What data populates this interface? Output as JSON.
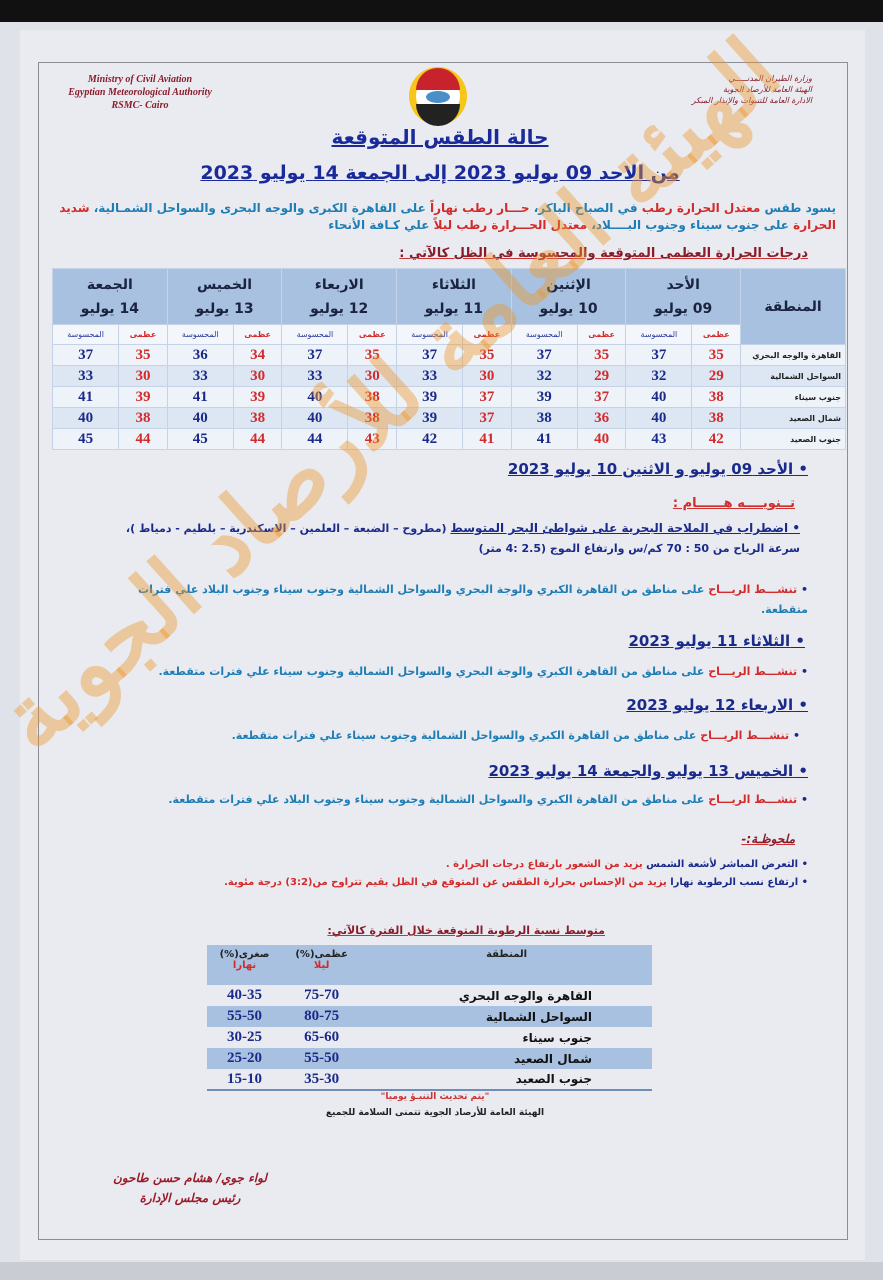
{
  "header": {
    "en_lines": [
      "Ministry of Civil Aviation",
      "Egyptian Meteorological Authority",
      "RSMC- Cairo"
    ],
    "ar_lines": [
      "وزارة الطيران المدنـــــي",
      "الهيئة العامة للأرصاد الجوية",
      "الادارة العامة للتنبوات والإنذار المبكر"
    ],
    "logo": "ema-logo",
    "title": "حالة الطقس المتوقعة",
    "subtitle": "من الاحد 09 يوليو 2023 إلى الجمعة 14 يوليو 2023"
  },
  "intro": {
    "p1": "يسود طقس ",
    "p2": "معتدل الحرارة رطب",
    "p3": " في الصباح الباكر، ",
    "p4": "حـــار رطب نهاراً",
    "p5": " على القاهرة الكبرى والوجه البحرى والسواحل الشمـالية، ",
    "p6": "شديد الحرارة",
    "p7": " على جنوب سيناء وجنوب البــــلاد، ",
    "p8": "معتدل الحـــرارة رطب ليلاً",
    "p9": " علي كـافة الأنحاء"
  },
  "temp_caption": "درجات الحرارة العظمى المتوقعة والمحسوسة في الظل كالآتي :",
  "temp_table": {
    "region_header": "المنطقة",
    "max_label": "عظمى",
    "feel_label": "المحسوسة",
    "days": [
      {
        "day": "الأحد",
        "date": "09 يوليو"
      },
      {
        "day": "الإثنين",
        "date": "10 يوليو"
      },
      {
        "day": "الثلاثاء",
        "date": "11 يوليو"
      },
      {
        "day": "الاربعاء",
        "date": "12 يوليو"
      },
      {
        "day": "الخميس",
        "date": "13 يوليو"
      },
      {
        "day": "الجمعة",
        "date": "14 يوليو"
      }
    ],
    "rows": [
      {
        "region": "القاهرة والوجه البحري",
        "values": [
          [
            35,
            37
          ],
          [
            35,
            37
          ],
          [
            35,
            37
          ],
          [
            35,
            37
          ],
          [
            34,
            36
          ],
          [
            35,
            37
          ]
        ]
      },
      {
        "region": "السواحل الشمالية",
        "values": [
          [
            29,
            32
          ],
          [
            29,
            32
          ],
          [
            30,
            33
          ],
          [
            30,
            33
          ],
          [
            30,
            33
          ],
          [
            30,
            33
          ]
        ]
      },
      {
        "region": "جنوب سيناء",
        "values": [
          [
            38,
            40
          ],
          [
            37,
            39
          ],
          [
            37,
            39
          ],
          [
            38,
            40
          ],
          [
            39,
            41
          ],
          [
            39,
            41
          ]
        ]
      },
      {
        "region": "شمال الصعيد",
        "values": [
          [
            38,
            40
          ],
          [
            36,
            38
          ],
          [
            37,
            39
          ],
          [
            38,
            40
          ],
          [
            38,
            40
          ],
          [
            38,
            40
          ]
        ]
      },
      {
        "region": "جنوب الصعيد",
        "values": [
          [
            42,
            43
          ],
          [
            40,
            41
          ],
          [
            41,
            42
          ],
          [
            43,
            44
          ],
          [
            44,
            45
          ],
          [
            44,
            45
          ]
        ]
      }
    ]
  },
  "sections": {
    "d1": "الأحد 09 يوليو  و الاثنين 10 يوليو 2023",
    "notice_title": "تــنويــــه هــــــام :",
    "notice_main": "اضطراب في الملاحة البحرية على شواطئ البحر المتوسط",
    "notice_places": "(مطروح – الضبعة – العلمين – الاسكندرية – بلطيم - دمياط )،",
    "notice_wind": "سرعة الرياح من 50 : 70 كم/س وارتفاع الموج (2.5 :4 متر)",
    "wind_word": "تنشـــط الريـــاح",
    "w1": " على مناطق من القاهرة الكبري والوجة البحري والسواحل الشمالية وجنوب سيناء وجنوب البلاد علي فترات متقطعة.",
    "d2": "الثلاثاء 11 يوليو 2023",
    "w2": " على مناطق من القاهرة الكبري والوجة البحري والسواحل الشمالية وجنوب سيناء علي فترات متقطعة.",
    "d3": "الاربعاء 12 يوليو 2023",
    "w3": " على مناطق من القاهرة الكبري والسواحل الشمالية وجنوب سيناء علي فترات متقطعة.",
    "d4": "الخميس 13 يوليو والجمعة 14 يوليو 2023",
    "w4": " على مناطق من القاهرة الكبري والسواحل الشمالية وجنوب سيناء وجنوب البلاد علي فترات متقطعة."
  },
  "notes": {
    "title": "ملحوظـة:-",
    "n1a": "التعرض المباشر لأشعة الشمس ",
    "n1b": "يزيد من الشعور بارتفاع درجات الحرارة .",
    "n2a": "ارتفاع نسب الرطوبة نهارا ",
    "n2b": "يزيد من الإحساس بحرارة الطقس عن المتوقع في الظل بقيم تتراوح من(3:2) درجة مئوية."
  },
  "humidity": {
    "caption": "متوسط نسبة الرطوبة المتوقعة خلال الفترة كالآتي:",
    "headers": {
      "region": "المنطقة",
      "max": "عظمى(%)",
      "max_sub": "ليلا",
      "min": "صغرى(%)",
      "min_sub": "نهارا"
    },
    "rows": [
      {
        "region": "القاهرة والوجه البحري",
        "max": "75-70",
        "min": "40-35"
      },
      {
        "region": "السواحل الشمالية",
        "max": "80-75",
        "min": "55-50"
      },
      {
        "region": "جنوب سيناء",
        "max": "65-60",
        "min": "30-25"
      },
      {
        "region": "شمال الصعيد",
        "max": "55-50",
        "min": "25-20"
      },
      {
        "region": "جنوب الصعيد",
        "max": "35-30",
        "min": "15-10"
      }
    ]
  },
  "footer": {
    "update": "\"يتم تحديث التنبـؤ يوميا\"",
    "wish": "الهيئة العامة للأرصاد الجوية تتمنى السلامة للجميع",
    "sig1": "لواء جوي/ هشام حسن طاحون",
    "sig2": "رئيس مجلس الإدارة"
  },
  "watermark": "الهيئة العامة للأرصاد الجوية",
  "colors": {
    "blue": "#1a2a9a",
    "red": "#d32a2a",
    "teal": "#1e7db4",
    "header_fill": "#a8c1e0"
  }
}
